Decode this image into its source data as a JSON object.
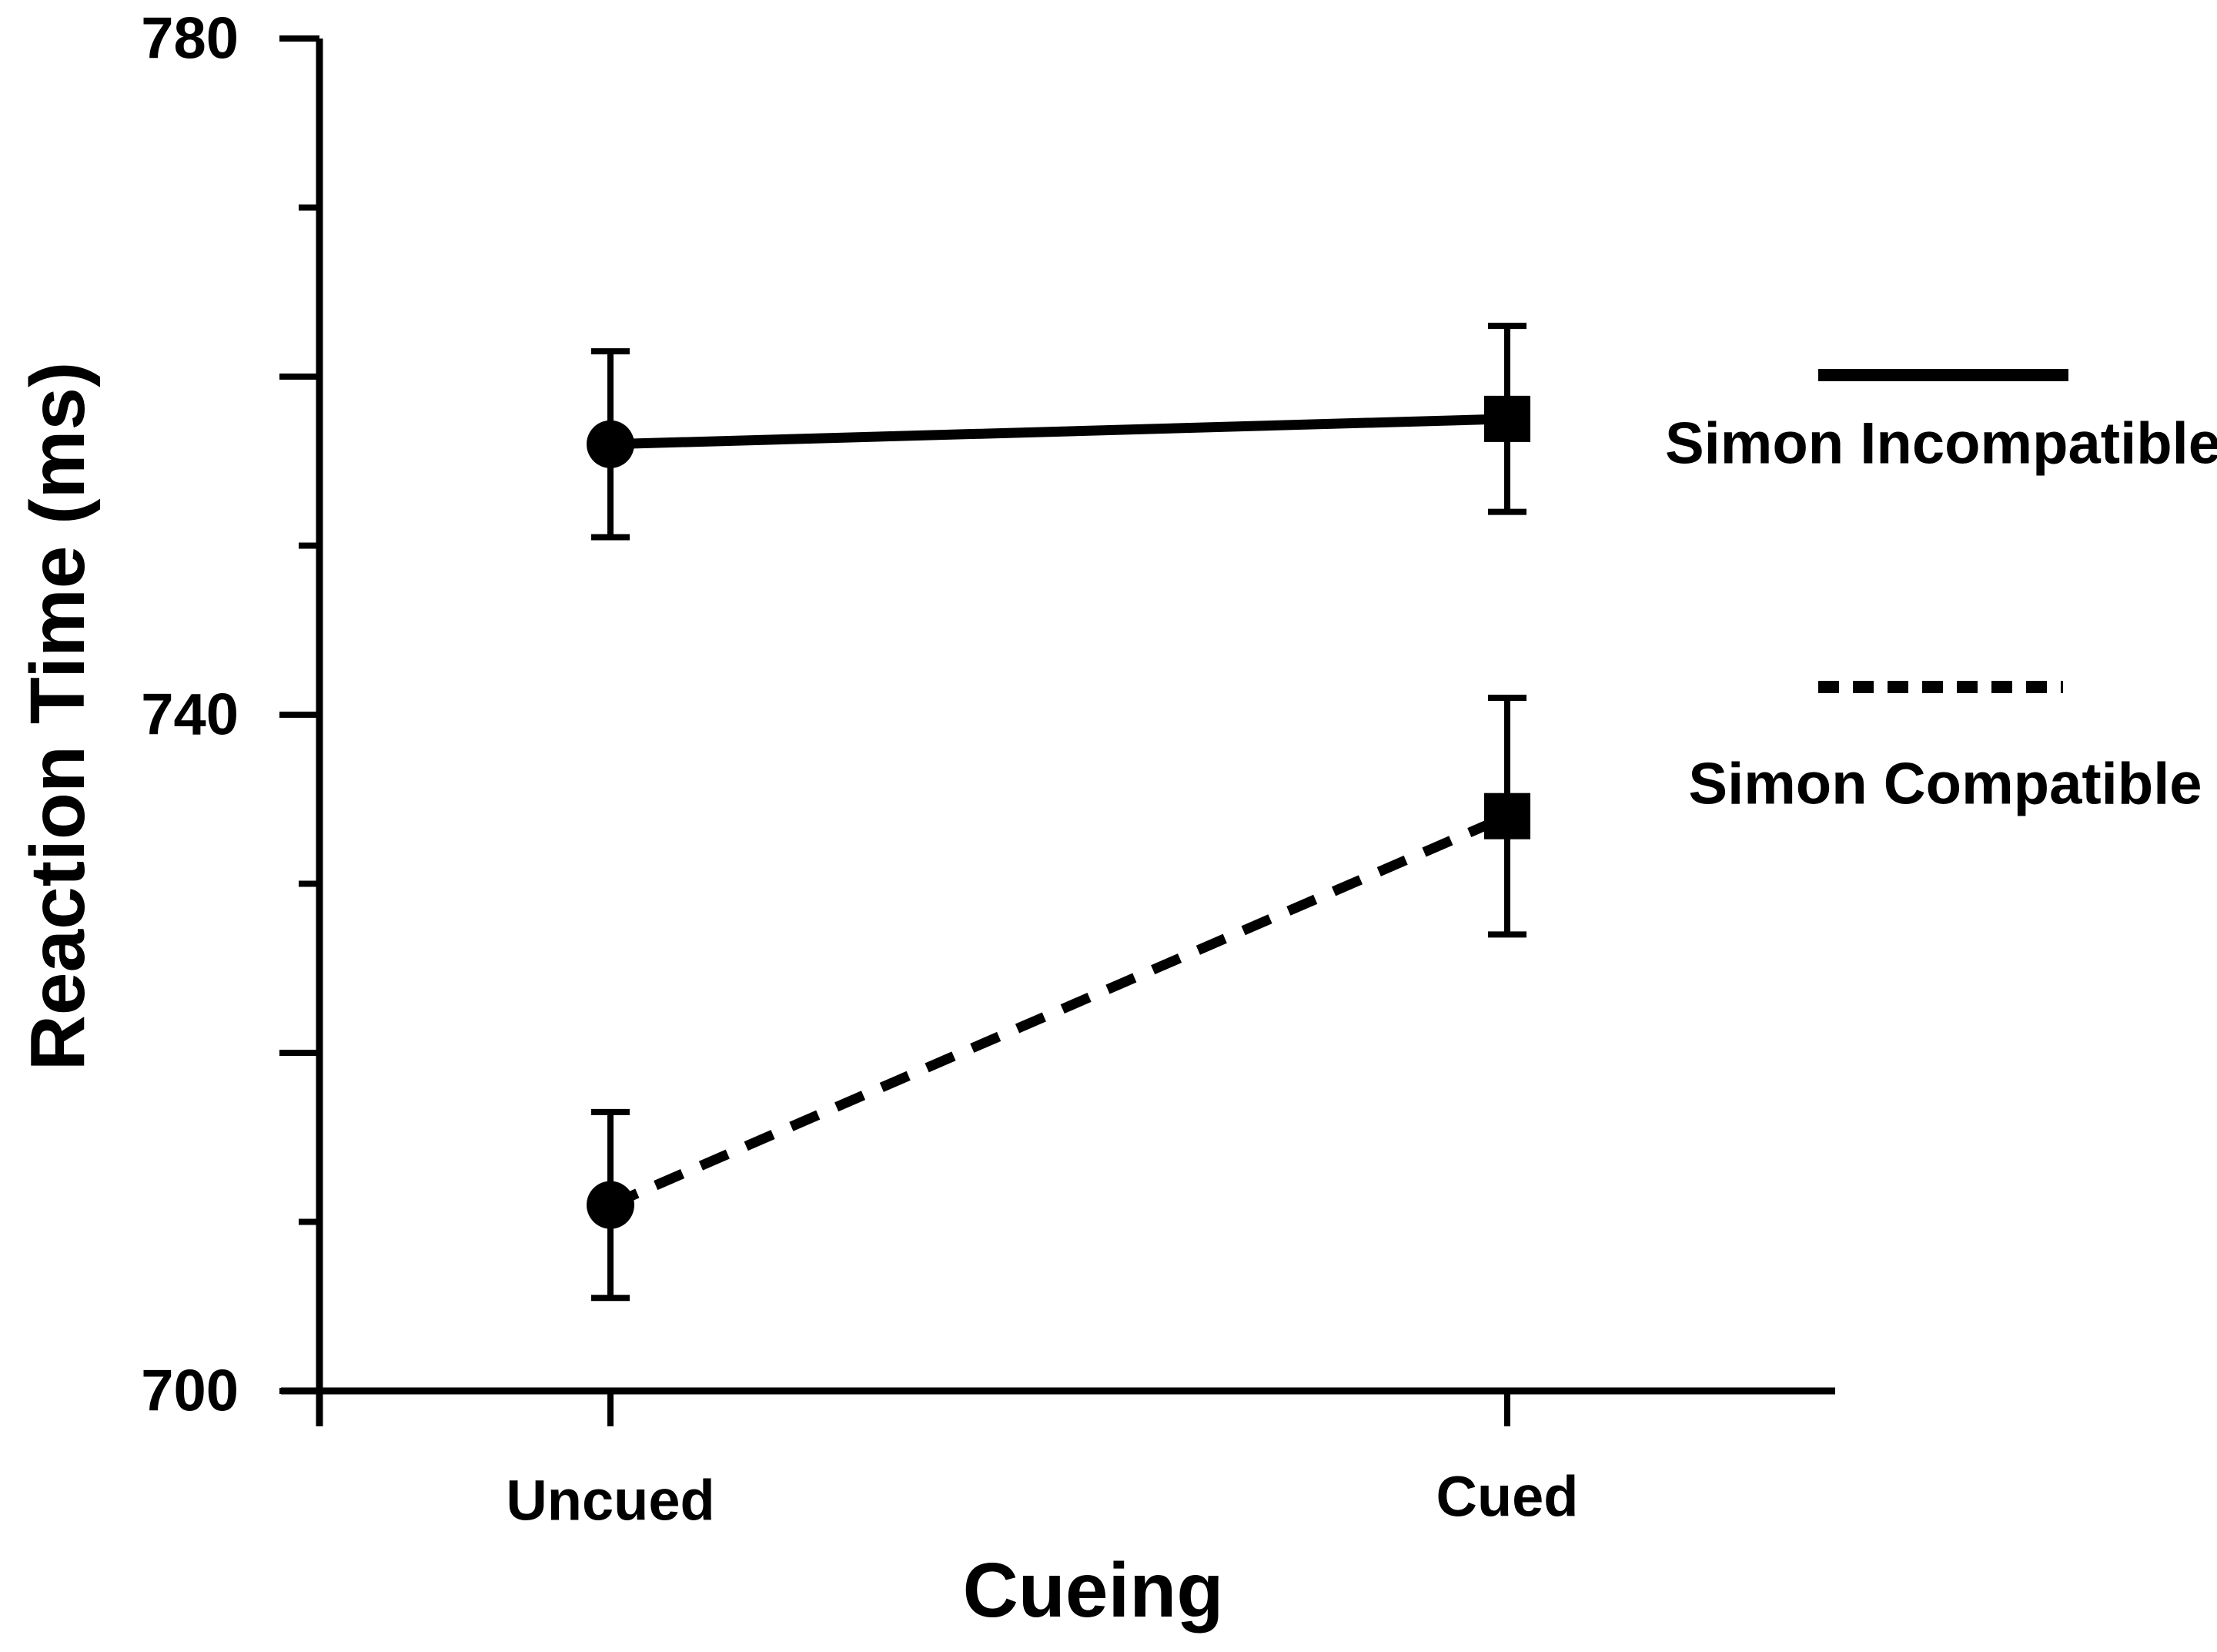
{
  "chart_data": {
    "type": "line",
    "title": "",
    "xlabel": "Cueing",
    "ylabel": "Reaction Time (ms)",
    "categories": [
      "Uncued",
      "Cued"
    ],
    "series": [
      {
        "name": "Simon Incompatible",
        "line_style": "solid",
        "markers_by_category": [
          "circle",
          "square"
        ],
        "values": [
          756,
          757.5
        ],
        "error": [
          5.5,
          5.5
        ]
      },
      {
        "name": "Simon Compatible",
        "line_style": "dashed",
        "markers_by_category": [
          "circle",
          "square"
        ],
        "values": [
          711,
          734
        ],
        "error": [
          5.5,
          7
        ]
      }
    ],
    "ylim": [
      700,
      780
    ],
    "y_ticks_labeled": [
      700,
      740,
      780
    ],
    "y_ticks_major": [
      700,
      720,
      740,
      760,
      780
    ],
    "y_ticks_minor": [
      710,
      730,
      750,
      770
    ],
    "grid": false,
    "legend_position": "right"
  },
  "colors": {
    "foreground": "#000000",
    "background": "#ffffff"
  }
}
